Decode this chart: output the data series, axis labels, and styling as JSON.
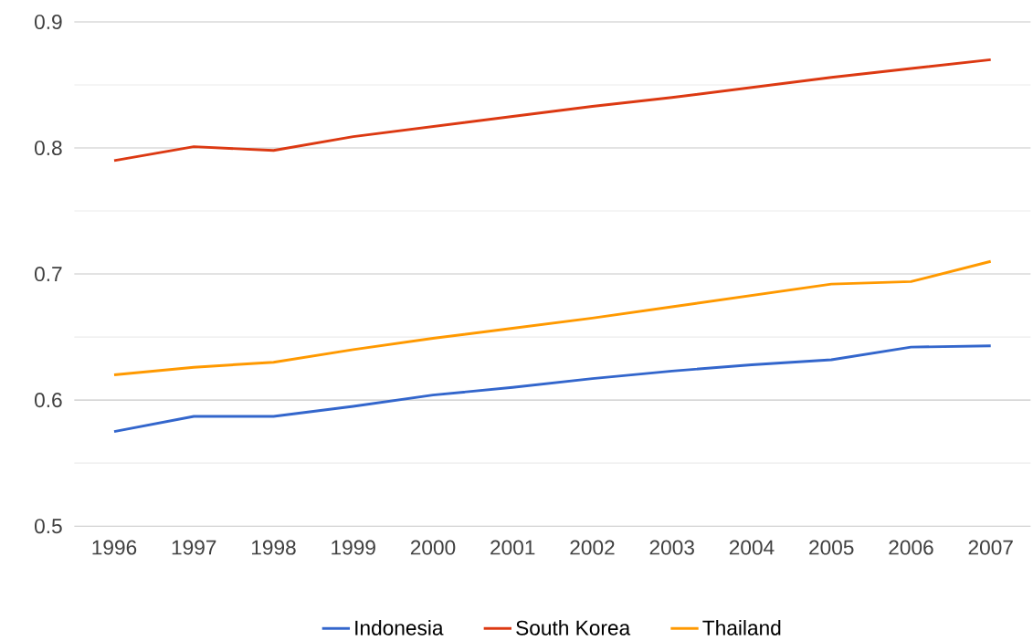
{
  "chart_data": {
    "type": "line",
    "categories": [
      "1996",
      "1997",
      "1998",
      "1999",
      "2000",
      "2001",
      "2002",
      "2003",
      "2004",
      "2005",
      "2006",
      "2007"
    ],
    "series": [
      {
        "name": "Indonesia",
        "color": "#3366cc",
        "values": [
          0.575,
          0.587,
          0.587,
          0.595,
          0.604,
          0.61,
          0.617,
          0.623,
          0.628,
          0.632,
          0.642,
          0.643
        ]
      },
      {
        "name": "South Korea",
        "color": "#dc3912",
        "values": [
          0.79,
          0.801,
          0.798,
          0.809,
          0.817,
          0.825,
          0.833,
          0.84,
          0.848,
          0.856,
          0.863,
          0.87
        ]
      },
      {
        "name": "Thailand",
        "color": "#ff9900",
        "values": [
          0.62,
          0.626,
          0.63,
          0.64,
          0.649,
          0.657,
          0.665,
          0.674,
          0.683,
          0.692,
          0.694,
          0.71
        ]
      }
    ],
    "ylim": [
      0.5,
      0.9
    ],
    "yticks": [
      0.5,
      0.6,
      0.7,
      0.8,
      0.9
    ],
    "grid": "y",
    "legend": "bottom",
    "marker": "none",
    "line_style": "solid"
  }
}
